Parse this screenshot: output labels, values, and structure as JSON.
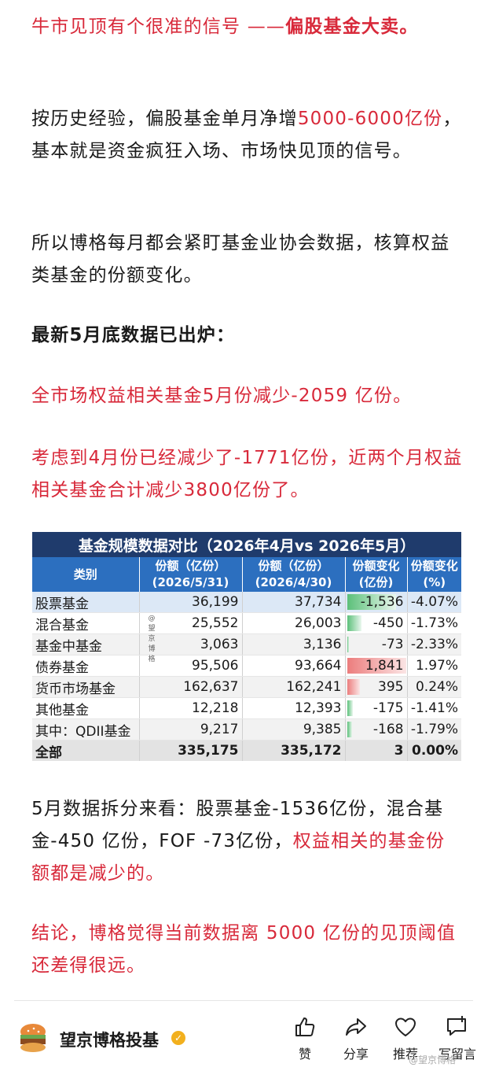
{
  "article": {
    "p1": {
      "red": "牛市见顶有个很准的信号 ——",
      "bold": "偏股基金大卖。"
    },
    "p2": {
      "a": "按历史经验，偏股基金单月净增",
      "b": "5000-6000亿份",
      "c": "，基本就是资金疯狂入场、市场快见顶的信号。"
    },
    "p3": "所以博格每月都会紧盯基金业协会数据，核算权益类基金的份额变化。",
    "p4": "最新5月底数据已出炉：",
    "p5": "全市场权益相关基金5月份减少-2059 亿份。",
    "p6": "考虑到4月份已经减少了-1771亿份，近两个月权益相关基金合计减少3800亿份了。",
    "p7": {
      "a": "5月数据拆分来看：股票基金-1536亿份，混合基金-450 亿份，FOF -73亿份，",
      "b": "权益相关的基金份额都是减少的。"
    },
    "p8": "结论，博格觉得当前数据离 5000 亿份的见顶阈值还差得很远。"
  },
  "table": {
    "title": "基金规模数据对比（2026年4月vs 2026年5月）",
    "headers": [
      "类别",
      "份额（亿份）(2026/5/31)",
      "份额（亿份）(2026/4/30)",
      "份额变化(亿份)",
      "份额变化(%)"
    ],
    "rows": [
      {
        "cat": "股票基金",
        "may": "36,199",
        "apr": "37,734",
        "chg": "-1,536",
        "chgv": -1536,
        "pct": "-4.07%"
      },
      {
        "cat": "混合基金",
        "may": "25,552",
        "apr": "26,003",
        "chg": "-450",
        "chgv": -450,
        "pct": "-1.73%"
      },
      {
        "cat": "基金中基金",
        "may": "3,063",
        "apr": "3,136",
        "chg": "-73",
        "chgv": -73,
        "pct": "-2.33%"
      },
      {
        "cat": "债券基金",
        "may": "95,506",
        "apr": "93,664",
        "chg": "1,841",
        "chgv": 1841,
        "pct": "1.97%"
      },
      {
        "cat": "货币市场基金",
        "may": "162,637",
        "apr": "162,241",
        "chg": "395",
        "chgv": 395,
        "pct": "0.24%"
      },
      {
        "cat": "其他基金",
        "may": "12,218",
        "apr": "12,393",
        "chg": "-175",
        "chgv": -175,
        "pct": "-1.41%"
      },
      {
        "cat": "其中：QDII基金",
        "may": "9,217",
        "apr": "9,385",
        "chg": "-168",
        "chgv": -168,
        "pct": "-1.79%"
      }
    ],
    "total": {
      "cat": "全部",
      "may": "335,175",
      "apr": "335,172",
      "chg": "3",
      "pct": "0.00%"
    },
    "watermark": [
      "@",
      "望",
      "京",
      "博",
      "格"
    ],
    "colors": {
      "title_bg": "#1f3b6c",
      "header_bg": "#2c6fbf",
      "neg_bar": "#5cc07a",
      "pos_bar": "#ec7d7d"
    }
  },
  "footer": {
    "author": "望京博格投基",
    "verified_icon": "verified-badge-icon",
    "actions": [
      {
        "label": "赞",
        "icon": "thumbs-up-icon"
      },
      {
        "label": "分享",
        "icon": "share-icon"
      },
      {
        "label": "推荐",
        "icon": "heart-icon"
      },
      {
        "label": "写留言",
        "icon": "comment-add-icon"
      }
    ],
    "watermark": "@望京博格"
  }
}
